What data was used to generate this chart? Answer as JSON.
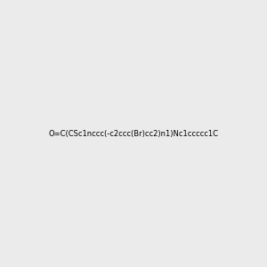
{
  "smiles": "O=C(CSc1nccc(-c2ccc(Br)cc2)n1)Nc1ccccc1C",
  "background_color": "#ebebeb",
  "img_size": [
    300,
    300
  ],
  "title": ""
}
